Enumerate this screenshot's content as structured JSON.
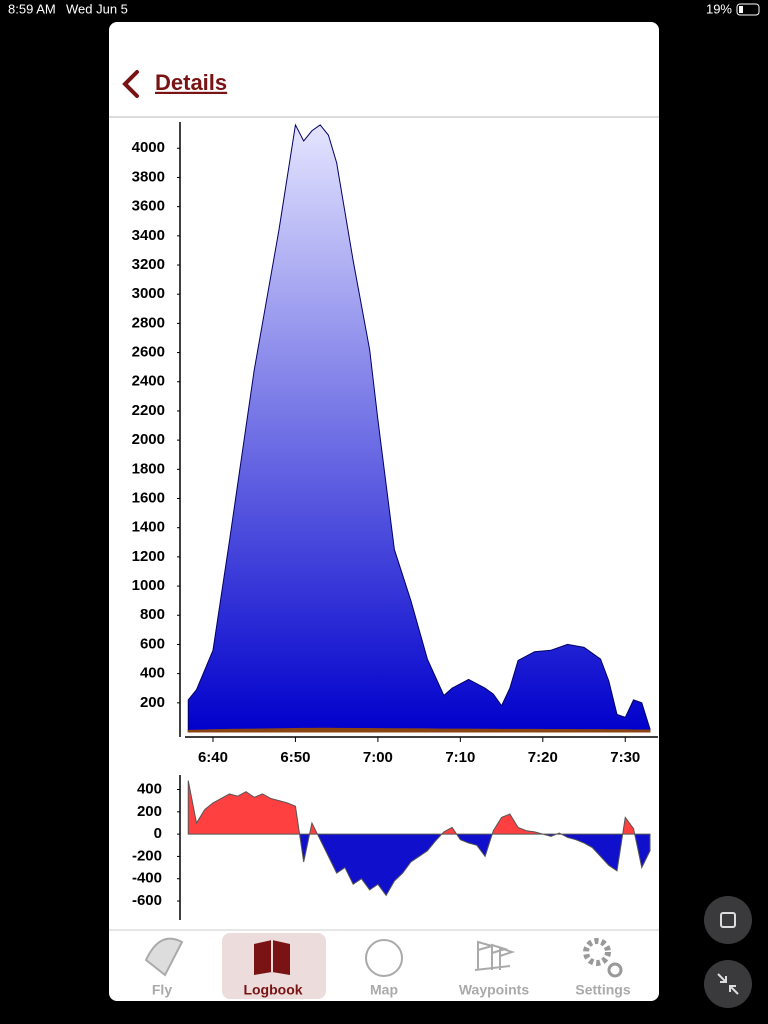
{
  "status_bar": {
    "time": "8:59 AM",
    "date": "Wed Jun 5",
    "battery": "19%"
  },
  "header": {
    "title": "Details"
  },
  "tabs": [
    "Fly",
    "Logbook",
    "Map",
    "Waypoints",
    "Settings"
  ],
  "chart_data": [
    {
      "type": "area",
      "x": [
        "6:37",
        "6:38",
        "6:40",
        "6:42",
        "6:45",
        "6:48",
        "6:50",
        "6:51",
        "6:52",
        "6:53",
        "6:54",
        "6:55",
        "6:57",
        "6:59",
        "7:00",
        "7:02",
        "7:04",
        "7:06",
        "7:08",
        "7:09",
        "7:11",
        "7:13",
        "7:14",
        "7:15",
        "7:16",
        "7:17",
        "7:19",
        "7:21",
        "7:23",
        "7:25",
        "7:27",
        "7:28",
        "7:29",
        "7:30",
        "7:31",
        "7:32",
        "7:33"
      ],
      "series": [
        {
          "color": "#0000cc",
          "values": [
            220,
            290,
            560,
            1310,
            2480,
            3440,
            4160,
            4050,
            4120,
            4160,
            4090,
            3900,
            3230,
            2620,
            2140,
            1250,
            900,
            500,
            250,
            300,
            360,
            300,
            260,
            180,
            300,
            490,
            550,
            560,
            600,
            580,
            500,
            350,
            120,
            100,
            220,
            200,
            20
          ]
        },
        {
          "color": "#8b4513",
          "values": [
            10,
            12,
            15,
            18,
            20,
            22,
            24,
            25,
            25,
            26,
            26,
            25,
            24,
            24,
            23,
            22,
            22,
            21,
            20,
            20,
            20,
            19,
            19,
            18,
            18,
            18,
            18,
            17,
            17,
            16,
            16,
            15,
            15,
            15,
            14,
            14,
            13
          ]
        }
      ],
      "xlim": [
        "6:36",
        "7:33"
      ],
      "xticks": [
        "6:40",
        "6:50",
        "7:00",
        "7:10",
        "7:20",
        "7:30"
      ],
      "ylim": [
        0,
        4180
      ],
      "yticks": [
        200,
        400,
        600,
        800,
        1000,
        1200,
        1400,
        1600,
        1800,
        2000,
        2200,
        2400,
        2600,
        2800,
        3000,
        3200,
        3400,
        3600,
        3800,
        4000
      ]
    },
    {
      "type": "area",
      "x": [
        "6:37",
        "6:38",
        "6:39",
        "6:40",
        "6:41",
        "6:42",
        "6:43",
        "6:44",
        "6:45",
        "6:46",
        "6:47",
        "6:48",
        "6:49",
        "6:50",
        "6:51",
        "6:52",
        "6:53",
        "6:54",
        "6:55",
        "6:56",
        "6:57",
        "6:58",
        "6:59",
        "7:00",
        "7:01",
        "7:02",
        "7:03",
        "7:04",
        "7:05",
        "7:06",
        "7:07",
        "7:08",
        "7:09",
        "7:10",
        "7:11",
        "7:12",
        "7:13",
        "7:14",
        "7:15",
        "7:16",
        "7:17",
        "7:18",
        "7:19",
        "7:20",
        "7:21",
        "7:22",
        "7:23",
        "7:24",
        "7:25",
        "7:26",
        "7:27",
        "7:28",
        "7:29",
        "7:30",
        "7:31",
        "7:32",
        "7:33"
      ],
      "series": [
        {
          "color": "#555555",
          "values": [
            480,
            100,
            220,
            280,
            320,
            360,
            340,
            380,
            330,
            360,
            320,
            300,
            280,
            250,
            -250,
            100,
            -50,
            -200,
            -350,
            -300,
            -450,
            -400,
            -500,
            -450,
            -550,
            -420,
            -350,
            -250,
            -200,
            -150,
            -60,
            20,
            60,
            -50,
            -80,
            -100,
            -200,
            30,
            150,
            180,
            60,
            30,
            20,
            0,
            -20,
            10,
            -30,
            -50,
            -80,
            -120,
            -200,
            -280,
            -330,
            150,
            50,
            -300,
            -150
          ]
        }
      ],
      "positive_color": "#ff4040",
      "negative_color": "#1010cc",
      "xlim": [
        "6:36",
        "7:33"
      ],
      "ylim": [
        -770,
        530
      ],
      "yticks": [
        -600,
        -400,
        -200,
        0,
        200,
        400
      ]
    }
  ]
}
